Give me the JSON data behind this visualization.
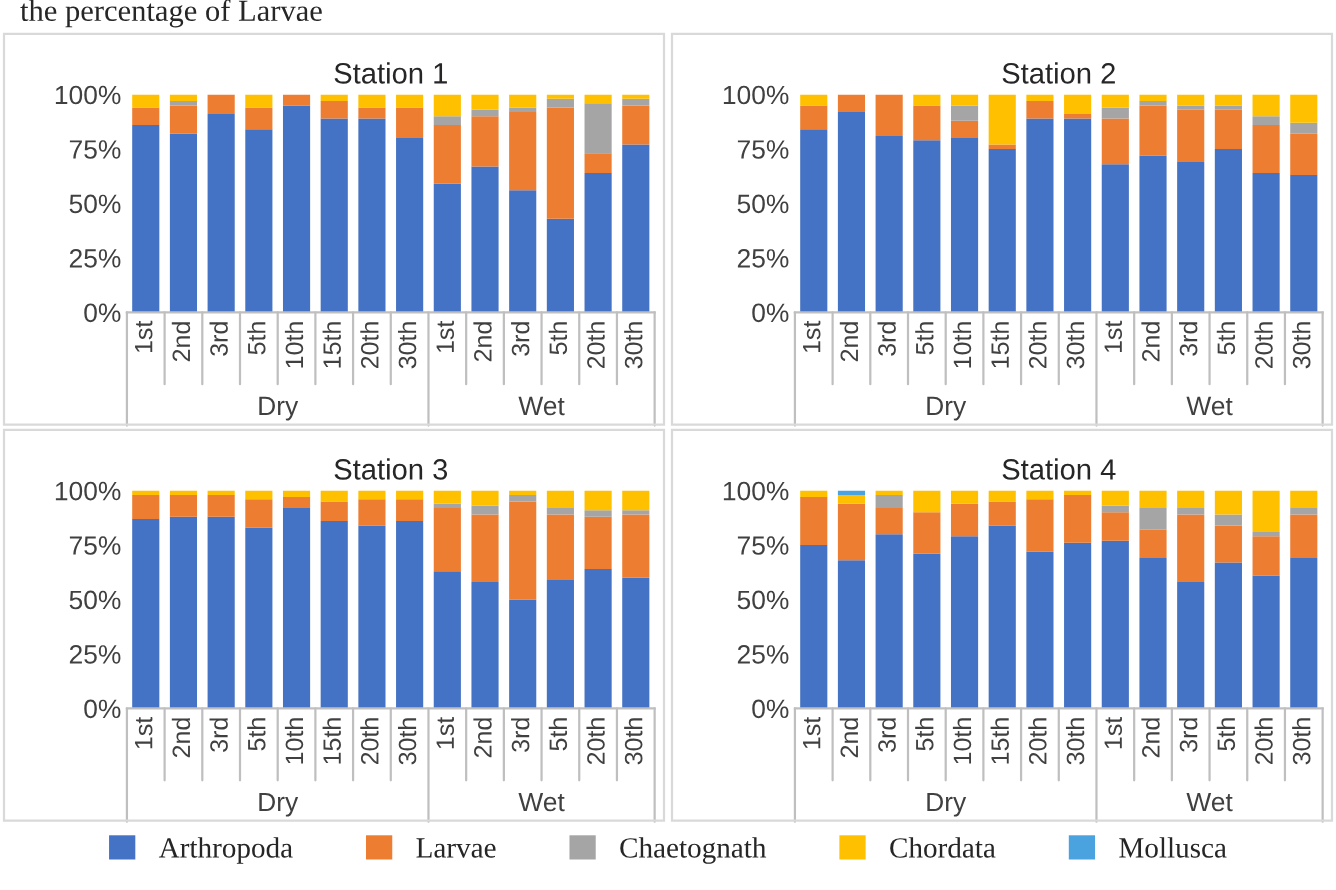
{
  "chart_data": [
    {
      "type": "bar",
      "stacked": true,
      "title": "Station 1",
      "categories": [
        "1st",
        "2nd",
        "3rd",
        "5th",
        "10th",
        "15th",
        "20th",
        "30th",
        "1st",
        "2nd",
        "3rd",
        "5th",
        "20th",
        "30th"
      ],
      "ylim": [
        0,
        100
      ],
      "yticks": [
        {
          "value": 0,
          "label": "0%"
        },
        {
          "value": 25,
          "label": "25%"
        },
        {
          "value": 50,
          "label": "50%"
        },
        {
          "value": 75,
          "label": "75%"
        },
        {
          "value": 100,
          "label": "100%"
        }
      ],
      "annotations": [
        "the percentage of Larvae",
        "Dry",
        "Wet"
      ],
      "series": [
        {
          "color": "#4472c4",
          "values": [
            86,
            82,
            91,
            84,
            95,
            89,
            89,
            80,
            59,
            67,
            56,
            43,
            64,
            77
          ]
        },
        {
          "color": "#ed7d31",
          "values": [
            8,
            13,
            9,
            10,
            5,
            8,
            5,
            14,
            27,
            23,
            36,
            51,
            9,
            18
          ]
        },
        {
          "color": "#a5a5a5",
          "values": [
            0,
            2,
            0,
            0,
            0,
            0,
            0,
            0,
            4,
            3,
            2,
            4,
            23,
            3
          ]
        },
        {
          "color": "#ffc000",
          "values": [
            6,
            3,
            0,
            6,
            0,
            3,
            6,
            6,
            10,
            7,
            6,
            2,
            4,
            2
          ]
        }
      ]
    },
    {
      "type": "bar",
      "stacked": true,
      "title": "Station 2",
      "categories": [
        "1st",
        "2nd",
        "3rd",
        "5th",
        "10th",
        "15th",
        "20th",
        "30th",
        "1st",
        "2nd",
        "3rd",
        "5th",
        "20th",
        "30th"
      ],
      "ylim": [
        0,
        100
      ],
      "yticks": [
        {
          "value": 0,
          "label": "0%"
        },
        {
          "value": 25,
          "label": "25%"
        },
        {
          "value": 50,
          "label": "50%"
        },
        {
          "value": 75,
          "label": "75%"
        },
        {
          "value": 100,
          "label": "100%"
        }
      ],
      "annotations": [
        "Dry",
        "Wet"
      ],
      "series": [
        {
          "color": "#4472c4",
          "values": [
            84,
            92,
            81,
            79,
            80,
            75,
            89,
            89,
            68,
            72,
            69,
            75,
            64,
            63
          ]
        },
        {
          "color": "#ed7d31",
          "values": [
            11,
            8,
            19,
            16,
            8,
            2,
            8,
            2,
            21,
            23,
            24,
            18,
            22,
            19
          ]
        },
        {
          "color": "#a5a5a5",
          "values": [
            0,
            0,
            0,
            0,
            7,
            0,
            0,
            0,
            5,
            2,
            2,
            2,
            4,
            5
          ]
        },
        {
          "color": "#ffc000",
          "values": [
            5,
            0,
            0,
            5,
            5,
            23,
            3,
            9,
            6,
            3,
            5,
            5,
            10,
            13
          ]
        }
      ]
    },
    {
      "type": "bar",
      "stacked": true,
      "title": "Station 3",
      "categories": [
        "1st",
        "2nd",
        "3rd",
        "5th",
        "10th",
        "15th",
        "20th",
        "30th",
        "1st",
        "2nd",
        "3rd",
        "5th",
        "20th",
        "30th"
      ],
      "ylim": [
        0,
        100
      ],
      "yticks": [
        {
          "value": 0,
          "label": "0%"
        },
        {
          "value": 25,
          "label": "25%"
        },
        {
          "value": 50,
          "label": "50%"
        },
        {
          "value": 75,
          "label": "75%"
        },
        {
          "value": 100,
          "label": "100%"
        }
      ],
      "annotations": [
        "Dry",
        "Wet"
      ],
      "series": [
        {
          "color": "#4472c4",
          "values": [
            87,
            88,
            88,
            83,
            92,
            86,
            84,
            86,
            63,
            58,
            50,
            59,
            64,
            60
          ]
        },
        {
          "color": "#ed7d31",
          "values": [
            11,
            10,
            10,
            13,
            5,
            9,
            12,
            10,
            29,
            31,
            45,
            30,
            24,
            29
          ]
        },
        {
          "color": "#a5a5a5",
          "values": [
            0,
            0,
            0,
            0,
            0,
            0,
            0,
            0,
            2,
            4,
            3,
            3,
            3,
            2
          ]
        },
        {
          "color": "#ffc000",
          "values": [
            2,
            2,
            2,
            4,
            3,
            5,
            4,
            4,
            6,
            7,
            2,
            8,
            9,
            9
          ]
        }
      ]
    },
    {
      "type": "bar",
      "stacked": true,
      "title": "Station 4",
      "categories": [
        "1st",
        "2nd",
        "3rd",
        "5th",
        "10th",
        "15th",
        "20th",
        "30th",
        "1st",
        "2nd",
        "3rd",
        "5th",
        "20th",
        "30th"
      ],
      "ylim": [
        0,
        100
      ],
      "yticks": [
        {
          "value": 0,
          "label": "0%"
        },
        {
          "value": 25,
          "label": "25%"
        },
        {
          "value": 50,
          "label": "50%"
        },
        {
          "value": 75,
          "label": "75%"
        },
        {
          "value": 100,
          "label": "100%"
        }
      ],
      "annotations": [
        "Dry",
        "Wet"
      ],
      "legend": "bottom",
      "series": [
        {
          "name": "Arthropoda",
          "color": "#4472c4",
          "values": [
            75,
            68,
            80,
            71,
            79,
            84,
            72,
            76,
            77,
            69,
            58,
            67,
            61,
            69
          ]
        },
        {
          "name": "Larvae",
          "color": "#ed7d31",
          "values": [
            22,
            26,
            12,
            19,
            15,
            11,
            24,
            22,
            13,
            13,
            31,
            17,
            18,
            20
          ]
        },
        {
          "name": "Chaetognath",
          "color": "#a5a5a5",
          "values": [
            0,
            0,
            6,
            0,
            0,
            0,
            0,
            0,
            3,
            10,
            3,
            5,
            2,
            3
          ]
        },
        {
          "name": "Chordata",
          "color": "#ffc000",
          "values": [
            3,
            4,
            2,
            10,
            6,
            5,
            4,
            2,
            7,
            8,
            8,
            11,
            19,
            8
          ]
        },
        {
          "name": "Mollusca",
          "color": "#4aa3df",
          "values": [
            0,
            2,
            0,
            0,
            0,
            0,
            0,
            0,
            0,
            0,
            0,
            0,
            0,
            0
          ]
        }
      ]
    }
  ]
}
